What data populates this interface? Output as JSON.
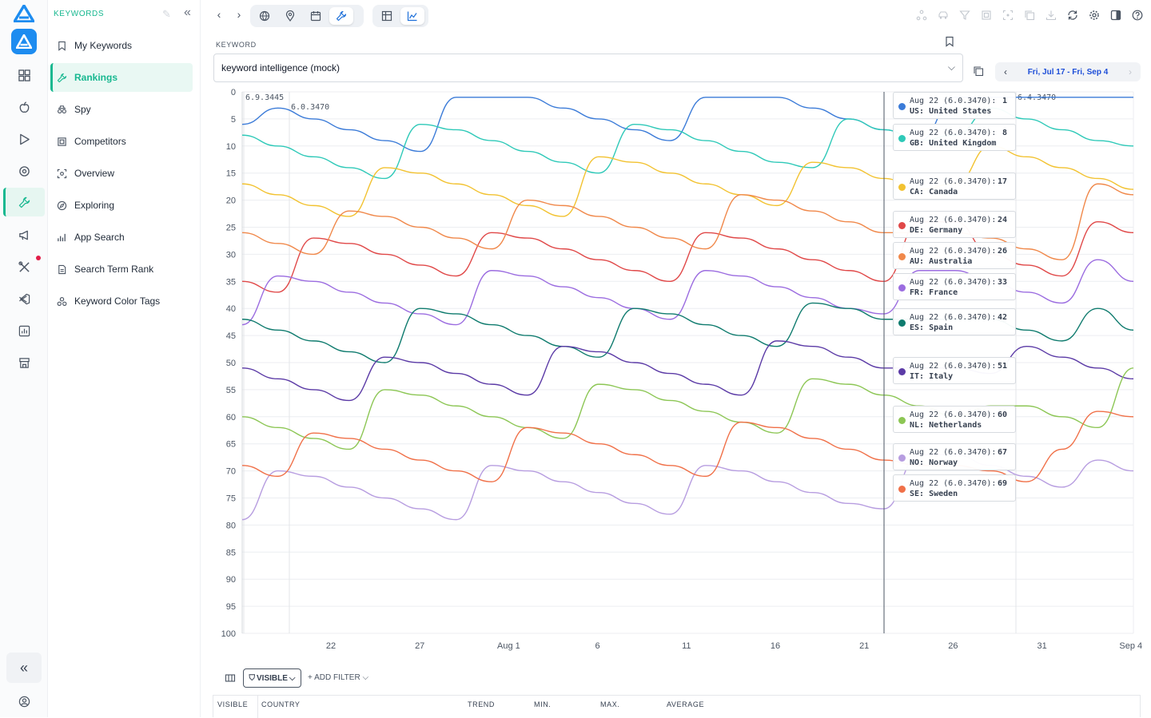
{
  "sidebar": {
    "section_title": "KEYWORDS",
    "items": [
      {
        "label": "My Keywords",
        "icon": "bookmark-icon",
        "active": false
      },
      {
        "label": "Rankings",
        "icon": "wrench-icon",
        "active": true
      },
      {
        "label": "Spy",
        "icon": "spy-icon",
        "active": false
      },
      {
        "label": "Competitors",
        "icon": "competitors-icon",
        "active": false
      },
      {
        "label": "Overview",
        "icon": "overview-icon",
        "active": false
      },
      {
        "label": "Exploring",
        "icon": "compass-icon",
        "active": false
      },
      {
        "label": "App Search",
        "icon": "bar-chart-icon",
        "active": false
      },
      {
        "label": "Search Term Rank",
        "icon": "document-icon",
        "active": false
      },
      {
        "label": "Keyword Color Tags",
        "icon": "tags-icon",
        "active": false
      }
    ]
  },
  "main": {
    "keyword_label": "KEYWORD",
    "keyword_value": "keyword intelligence (mock)",
    "date_range": "Fri, Jul 17 - Fri, Sep 4"
  },
  "filters": {
    "visible_label": "VISIBLE",
    "add_filter_label": "+ ADD FILTER"
  },
  "table": {
    "columns": [
      "VISIBLE",
      "COUNTRY",
      "TREND",
      "MIN.",
      "MAX.",
      "AVERAGE"
    ]
  },
  "colors": {
    "accent": "#18b890",
    "brand": "#1d8cf0"
  },
  "chart_data": {
    "type": "line",
    "x_tick_labels": [
      "22",
      "27",
      "Aug 1",
      "6",
      "11",
      "16",
      "21",
      "26",
      "31",
      "Sep 4"
    ],
    "y_ticks": [
      0,
      5,
      10,
      15,
      20,
      25,
      30,
      35,
      40,
      45,
      50,
      55,
      60,
      65,
      70,
      75,
      80,
      85,
      90,
      95,
      100
    ],
    "ylim": [
      100,
      0
    ],
    "y_inverted": true,
    "grid": true,
    "annotations": [
      "6.9.3445",
      "6.0.3470",
      "6.4.3470"
    ],
    "hover": {
      "date": "Aug 22",
      "version": "6.0.3470"
    },
    "series": [
      {
        "name": "US: United States",
        "color": "#3b7bd8",
        "hover_value": 1,
        "values": [
          6,
          3,
          5,
          7,
          9,
          11,
          1,
          1,
          1,
          3,
          5,
          7,
          9,
          1,
          1,
          1,
          3,
          5,
          7,
          9,
          1,
          1,
          1,
          1,
          1,
          1
        ]
      },
      {
        "name": "GB: United Kingdom",
        "color": "#2ec9b8",
        "hover_value": 8,
        "values": [
          8,
          10,
          12,
          14,
          16,
          6,
          7,
          9,
          11,
          13,
          15,
          6,
          7,
          9,
          11,
          13,
          14,
          5,
          7,
          9,
          8,
          3,
          5,
          7,
          9,
          10
        ]
      },
      {
        "name": "CA: Canada",
        "color": "#f2c230",
        "hover_value": 17,
        "values": [
          17,
          19,
          21,
          23,
          14,
          15,
          17,
          19,
          21,
          23,
          12,
          13,
          15,
          17,
          19,
          21,
          13,
          14,
          16,
          18,
          17,
          10,
          12,
          14,
          16,
          18
        ]
      },
      {
        "name": "DE: Germany",
        "color": "#e04848",
        "hover_value": 24,
        "values": [
          35,
          37,
          27,
          28,
          30,
          32,
          34,
          26,
          27,
          29,
          31,
          33,
          35,
          26,
          27,
          29,
          31,
          33,
          35,
          24,
          24,
          30,
          32,
          34,
          24,
          26
        ]
      },
      {
        "name": "AU: Australia",
        "color": "#f0884a",
        "hover_value": 26,
        "values": [
          26,
          28,
          30,
          22,
          23,
          25,
          27,
          29,
          20,
          21,
          23,
          25,
          27,
          29,
          19,
          20,
          22,
          24,
          26,
          26,
          26,
          27,
          29,
          31,
          17,
          19
        ]
      },
      {
        "name": "FR: France",
        "color": "#9b6ce0",
        "hover_value": 33,
        "values": [
          43,
          34,
          35,
          37,
          39,
          41,
          43,
          33,
          34,
          36,
          38,
          40,
          42,
          33,
          34,
          36,
          38,
          40,
          41,
          33,
          33,
          35,
          37,
          39,
          31,
          35
        ]
      },
      {
        "name": "ES: Spain",
        "color": "#0f7b6e",
        "hover_value": 42,
        "values": [
          42,
          44,
          46,
          48,
          50,
          40,
          41,
          43,
          45,
          47,
          49,
          40,
          41,
          43,
          45,
          47,
          39,
          40,
          42,
          42,
          42,
          42,
          44,
          46,
          40,
          44
        ]
      },
      {
        "name": "IT: Italy",
        "color": "#5b3aa6",
        "hover_value": 51,
        "values": [
          51,
          53,
          55,
          57,
          49,
          50,
          52,
          54,
          56,
          47,
          48,
          50,
          52,
          54,
          56,
          46,
          47,
          49,
          51,
          51,
          51,
          52,
          47,
          49,
          51,
          53
        ]
      },
      {
        "name": "NL: Netherlands",
        "color": "#8cc654",
        "hover_value": 60,
        "values": [
          60,
          62,
          64,
          66,
          55,
          56,
          58,
          60,
          62,
          64,
          54,
          55,
          57,
          59,
          61,
          63,
          53,
          54,
          56,
          58,
          60,
          58,
          58,
          60,
          62,
          51
        ]
      },
      {
        "name": "NO: Norway",
        "color": "#b79de0",
        "hover_value": 67,
        "values": [
          79,
          70,
          71,
          73,
          75,
          77,
          79,
          69,
          70,
          72,
          74,
          76,
          78,
          69,
          70,
          72,
          74,
          76,
          77,
          67,
          67,
          69,
          71,
          73,
          68,
          70
        ]
      },
      {
        "name": "SE: Sweden",
        "color": "#f07048",
        "hover_value": 69,
        "values": [
          69,
          71,
          63,
          64,
          66,
          68,
          70,
          72,
          62,
          63,
          65,
          67,
          69,
          71,
          61,
          62,
          64,
          66,
          68,
          69,
          69,
          70,
          72,
          66,
          59,
          60
        ]
      }
    ]
  }
}
